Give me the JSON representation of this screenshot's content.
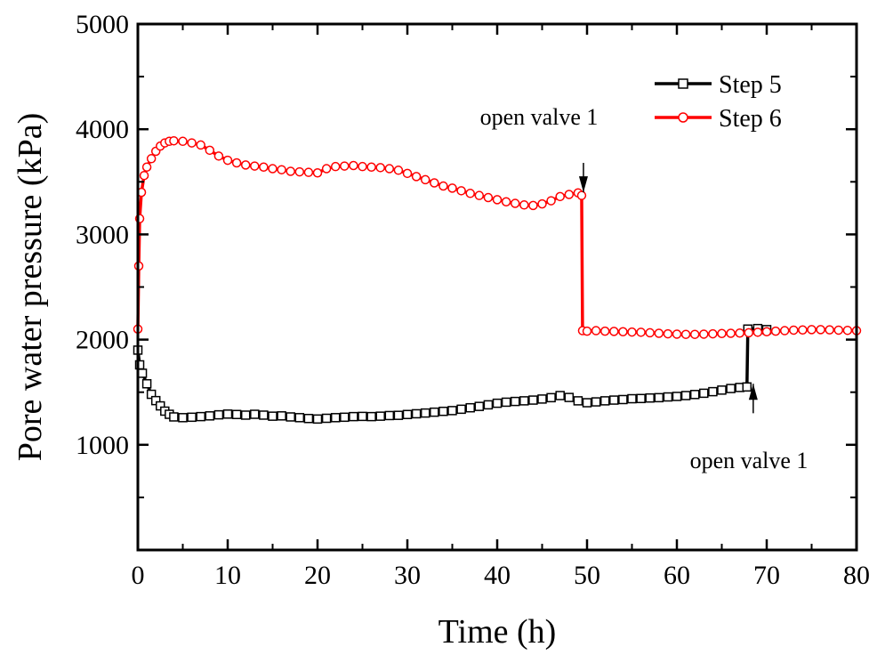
{
  "chart_data": {
    "type": "line",
    "title": "",
    "xlabel": "Time (h)",
    "ylabel": "Pore water pressure (kPa)",
    "xlim": [
      0,
      80
    ],
    "ylim": [
      0,
      5000
    ],
    "x_ticks": [
      0,
      10,
      20,
      30,
      40,
      50,
      60,
      70,
      80
    ],
    "y_ticks": [
      1000,
      2000,
      3000,
      4000,
      5000
    ],
    "grid": false,
    "legend_position": "top-right",
    "series": [
      {
        "name": "Step 5",
        "color": "#000000",
        "marker": "open-square",
        "points": [
          [
            0,
            1900
          ],
          [
            0.2,
            1760
          ],
          [
            0.5,
            1680
          ],
          [
            1,
            1580
          ],
          [
            1.5,
            1480
          ],
          [
            2,
            1420
          ],
          [
            2.5,
            1370
          ],
          [
            3,
            1320
          ],
          [
            3.5,
            1290
          ],
          [
            4,
            1265
          ],
          [
            5,
            1258
          ],
          [
            6,
            1262
          ],
          [
            7,
            1268
          ],
          [
            8,
            1275
          ],
          [
            9,
            1285
          ],
          [
            10,
            1292
          ],
          [
            11,
            1288
          ],
          [
            12,
            1282
          ],
          [
            13,
            1290
          ],
          [
            14,
            1282
          ],
          [
            15,
            1272
          ],
          [
            16,
            1275
          ],
          [
            17,
            1265
          ],
          [
            18,
            1258
          ],
          [
            19,
            1250
          ],
          [
            20,
            1245
          ],
          [
            21,
            1252
          ],
          [
            22,
            1258
          ],
          [
            23,
            1262
          ],
          [
            24,
            1268
          ],
          [
            25,
            1270
          ],
          [
            26,
            1268
          ],
          [
            27,
            1272
          ],
          [
            28,
            1278
          ],
          [
            29,
            1280
          ],
          [
            30,
            1288
          ],
          [
            31,
            1295
          ],
          [
            32,
            1302
          ],
          [
            33,
            1310
          ],
          [
            34,
            1318
          ],
          [
            35,
            1325
          ],
          [
            36,
            1338
          ],
          [
            37,
            1352
          ],
          [
            38,
            1365
          ],
          [
            39,
            1380
          ],
          [
            40,
            1395
          ],
          [
            41,
            1405
          ],
          [
            42,
            1412
          ],
          [
            43,
            1418
          ],
          [
            44,
            1425
          ],
          [
            45,
            1435
          ],
          [
            46,
            1448
          ],
          [
            47,
            1468
          ],
          [
            48,
            1450
          ],
          [
            49,
            1418
          ],
          [
            50,
            1400
          ],
          [
            51,
            1408
          ],
          [
            52,
            1418
          ],
          [
            53,
            1425
          ],
          [
            54,
            1430
          ],
          [
            55,
            1438
          ],
          [
            56,
            1440
          ],
          [
            57,
            1445
          ],
          [
            58,
            1448
          ],
          [
            59,
            1455
          ],
          [
            60,
            1460
          ],
          [
            61,
            1468
          ],
          [
            62,
            1478
          ],
          [
            63,
            1490
          ],
          [
            64,
            1505
          ],
          [
            65,
            1520
          ],
          [
            66,
            1535
          ],
          [
            67,
            1545
          ],
          [
            67.8,
            1550
          ],
          [
            67.9,
            2100
          ],
          [
            69,
            2105
          ],
          [
            70,
            2095
          ]
        ]
      },
      {
        "name": "Step 6",
        "color": "#ff0000",
        "marker": "open-circle",
        "points": [
          [
            0,
            2100
          ],
          [
            0.1,
            2700
          ],
          [
            0.2,
            3150
          ],
          [
            0.4,
            3400
          ],
          [
            0.7,
            3560
          ],
          [
            1,
            3640
          ],
          [
            1.5,
            3720
          ],
          [
            2,
            3790
          ],
          [
            2.5,
            3840
          ],
          [
            3,
            3870
          ],
          [
            3.5,
            3885
          ],
          [
            4,
            3890
          ],
          [
            5,
            3885
          ],
          [
            6,
            3870
          ],
          [
            7,
            3850
          ],
          [
            8,
            3800
          ],
          [
            9,
            3745
          ],
          [
            10,
            3705
          ],
          [
            11,
            3680
          ],
          [
            12,
            3660
          ],
          [
            13,
            3650
          ],
          [
            14,
            3640
          ],
          [
            15,
            3625
          ],
          [
            16,
            3615
          ],
          [
            17,
            3600
          ],
          [
            18,
            3595
          ],
          [
            19,
            3590
          ],
          [
            20,
            3585
          ],
          [
            21,
            3625
          ],
          [
            22,
            3645
          ],
          [
            23,
            3650
          ],
          [
            24,
            3655
          ],
          [
            25,
            3645
          ],
          [
            26,
            3640
          ],
          [
            27,
            3635
          ],
          [
            28,
            3625
          ],
          [
            29,
            3610
          ],
          [
            30,
            3580
          ],
          [
            31,
            3550
          ],
          [
            32,
            3520
          ],
          [
            33,
            3490
          ],
          [
            34,
            3460
          ],
          [
            35,
            3440
          ],
          [
            36,
            3415
          ],
          [
            37,
            3390
          ],
          [
            38,
            3370
          ],
          [
            39,
            3350
          ],
          [
            40,
            3330
          ],
          [
            41,
            3310
          ],
          [
            42,
            3295
          ],
          [
            43,
            3280
          ],
          [
            44,
            3275
          ],
          [
            45,
            3290
          ],
          [
            46,
            3320
          ],
          [
            47,
            3360
          ],
          [
            48,
            3380
          ],
          [
            49,
            3395
          ],
          [
            49.4,
            3370
          ],
          [
            49.5,
            2085
          ],
          [
            50,
            2080
          ],
          [
            51,
            2085
          ],
          [
            52,
            2080
          ],
          [
            53,
            2078
          ],
          [
            54,
            2075
          ],
          [
            55,
            2072
          ],
          [
            56,
            2070
          ],
          [
            57,
            2065
          ],
          [
            58,
            2060
          ],
          [
            59,
            2055
          ],
          [
            60,
            2052
          ],
          [
            61,
            2050
          ],
          [
            62,
            2050
          ],
          [
            63,
            2052
          ],
          [
            64,
            2055
          ],
          [
            65,
            2058
          ],
          [
            66,
            2060
          ],
          [
            67,
            2062
          ],
          [
            68,
            2065
          ],
          [
            69,
            2070
          ],
          [
            70,
            2075
          ],
          [
            71,
            2080
          ],
          [
            72,
            2085
          ],
          [
            73,
            2090
          ],
          [
            74,
            2092
          ],
          [
            75,
            2095
          ],
          [
            76,
            2095
          ],
          [
            77,
            2093
          ],
          [
            78,
            2090
          ],
          [
            79,
            2088
          ],
          [
            80,
            2085
          ]
        ]
      }
    ],
    "annotations": [
      {
        "text": "open valve 1",
        "arrow_tip": [
          49.6,
          3400
        ],
        "arrow_from": [
          49.6,
          3680
        ]
      },
      {
        "text": "open valve 1",
        "arrow_tip": [
          68.5,
          1580
        ],
        "arrow_from": [
          68.5,
          1300
        ]
      }
    ]
  }
}
